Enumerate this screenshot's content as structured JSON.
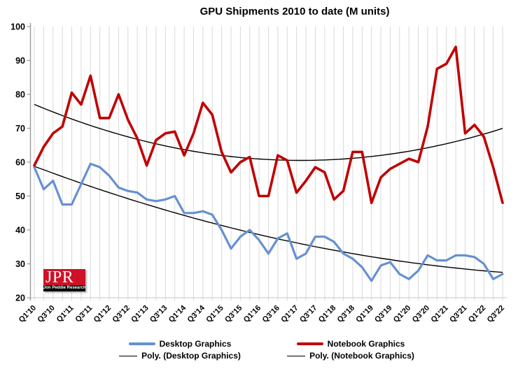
{
  "chart_data": {
    "type": "line",
    "title": "GPU Shipments 2010 to date (M units)",
    "categories": [
      "Q1'10",
      "Q2'10",
      "Q3'10",
      "Q4'10",
      "Q1'11",
      "Q2'11",
      "Q3'11",
      "Q4'11",
      "Q1'12",
      "Q2'12",
      "Q3'12",
      "Q4'12",
      "Q1'13",
      "Q2'13",
      "Q3'13",
      "Q4'13",
      "Q1'14",
      "Q2'14",
      "Q3'14",
      "Q4'14",
      "Q1'15",
      "Q2'15",
      "Q3'15",
      "Q4'15",
      "Q1'16",
      "Q2'16",
      "Q3'16",
      "Q4'16",
      "Q1'17",
      "Q2'17",
      "Q3'17",
      "Q4'17",
      "Q1'18",
      "Q2'18",
      "Q3'18",
      "Q4'18",
      "Q1'19",
      "Q2'19",
      "Q3'19",
      "Q4'19",
      "Q1'20",
      "Q2'20",
      "Q3'20",
      "Q4'20",
      "Q1'21",
      "Q2'21",
      "Q3'21",
      "Q4'21",
      "Q1'22",
      "Q2'22",
      "Q3'22"
    ],
    "x_tick_step": 2,
    "ylim": [
      20,
      100
    ],
    "y_tick_step": 10,
    "grid": "vertical",
    "legend_position": "bottom",
    "series": [
      {
        "name": "Desktop Graphics",
        "color": "#6691D1",
        "width": 3.2,
        "values": [
          58.5,
          52,
          54.5,
          47.5,
          47.5,
          53.5,
          59.5,
          58.5,
          56,
          52.5,
          51.5,
          51,
          49,
          48.5,
          49,
          50,
          45,
          45,
          45.5,
          44.5,
          40,
          34.5,
          38,
          40,
          37,
          33,
          37.5,
          39,
          31.5,
          33,
          38,
          38,
          36.5,
          33,
          31.5,
          29,
          25,
          29.5,
          30.5,
          27,
          25.5,
          28,
          32.5,
          31,
          31,
          32.5,
          32.5,
          32,
          30,
          25.5,
          27
        ]
      },
      {
        "name": "Notebook Graphics",
        "color": "#C00000",
        "width": 3.6,
        "values": [
          59,
          64.5,
          68.5,
          70.5,
          80.5,
          77,
          85.5,
          73,
          73,
          80,
          72.5,
          67,
          59,
          66.5,
          68.5,
          69,
          62,
          68.5,
          77.5,
          74,
          63,
          57,
          60,
          61.5,
          50,
          50,
          62,
          60.5,
          51,
          54.5,
          58.5,
          57,
          49,
          51.5,
          63,
          63,
          48,
          55.5,
          58,
          59.5,
          61,
          60,
          70.5,
          87.5,
          89,
          94,
          68.5,
          71,
          67.5,
          58.5,
          48
        ]
      },
      {
        "name": "Poly. (Desktop Graphics)",
        "color": "#000000",
        "trendline_of": 0,
        "poly_order": 2,
        "width": 1.4
      },
      {
        "name": "Poly. (Notebook Graphics)",
        "color": "#000000",
        "trendline_of": 1,
        "poly_order": 2,
        "width": 1.4
      }
    ],
    "colors": {
      "gridline": "#D9D9D9",
      "y_axis": "#9A9A9A",
      "x_axis": "#C6C6C6",
      "text": "#000000"
    }
  },
  "logo": {
    "acronym": "JPR",
    "caption": "Jon Peddie Research",
    "bg": "#CE1126",
    "strip_bg": "#000000",
    "text_color": "#FFFFFF"
  }
}
